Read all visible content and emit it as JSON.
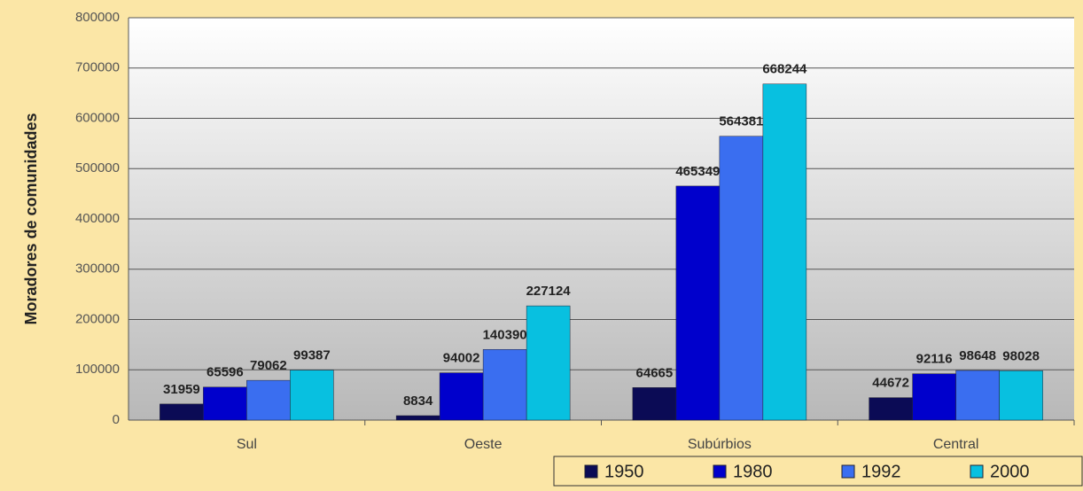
{
  "chart_data": {
    "type": "bar",
    "y_label": "Moradores de comunidades",
    "categories": [
      "Sul",
      "Oeste",
      "Subúrbios",
      "Central"
    ],
    "series": [
      {
        "name": "1950",
        "color": "#0b0b55",
        "values": [
          31959,
          8834,
          64665,
          44672
        ]
      },
      {
        "name": "1980",
        "color": "#0000cc",
        "values": [
          65596,
          94002,
          465349,
          92116
        ]
      },
      {
        "name": "1992",
        "color": "#3a6ef0",
        "values": [
          79062,
          140390,
          564381,
          98648
        ]
      },
      {
        "name": "2000",
        "color": "#08c0e0",
        "values": [
          99387,
          227124,
          668244,
          98028
        ]
      }
    ],
    "ylim": [
      0,
      800000
    ],
    "yticks": [
      0,
      100000,
      200000,
      300000,
      400000,
      500000,
      600000,
      700000,
      800000
    ],
    "grid": true
  }
}
